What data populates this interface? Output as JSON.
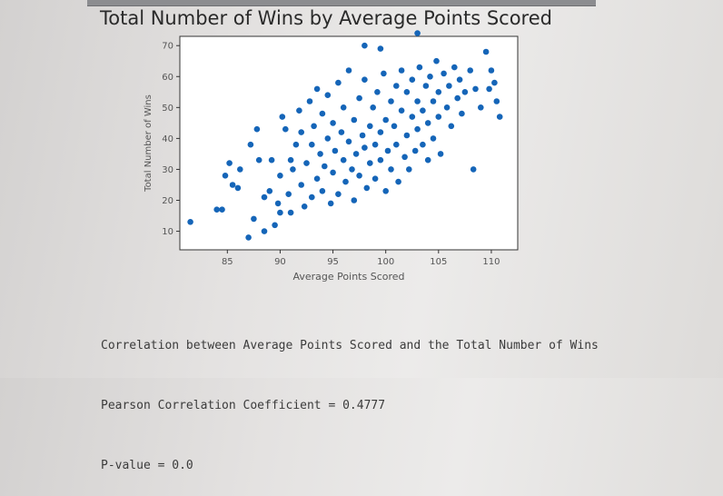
{
  "output_lines": [
    "Correlation between Average Points Scored and the Total Number of Wins",
    "Pearson Correlation Coefficient = 0.4777",
    "P-value = 0.0"
  ],
  "colors": {
    "point": "#1565b8",
    "axis": "#333333",
    "tick_text": "#555555",
    "background": "#ffffff"
  },
  "chart_data": {
    "type": "scatter",
    "title": "Total Number of Wins by Average Points Scored",
    "xlabel": "Average Points Scored",
    "ylabel": "Total Number of Wins",
    "xlim": [
      80.5,
      112.5
    ],
    "ylim": [
      4,
      73
    ],
    "xticks": [
      85,
      90,
      95,
      100,
      105,
      110
    ],
    "yticks": [
      10,
      20,
      30,
      40,
      50,
      60,
      70
    ],
    "grid": false,
    "series": [
      {
        "points": [
          [
            81.5,
            13
          ],
          [
            84.0,
            17
          ],
          [
            84.5,
            17
          ],
          [
            84.8,
            28
          ],
          [
            85.2,
            32
          ],
          [
            85.5,
            25
          ],
          [
            86.0,
            24
          ],
          [
            86.2,
            30
          ],
          [
            87.0,
            8
          ],
          [
            87.2,
            38
          ],
          [
            87.5,
            14
          ],
          [
            87.8,
            43
          ],
          [
            88.0,
            33
          ],
          [
            88.5,
            10
          ],
          [
            88.5,
            21
          ],
          [
            89.0,
            23
          ],
          [
            89.2,
            33
          ],
          [
            89.5,
            12
          ],
          [
            89.8,
            19
          ],
          [
            90.0,
            16
          ],
          [
            90.0,
            28
          ],
          [
            90.2,
            47
          ],
          [
            90.5,
            43
          ],
          [
            90.8,
            22
          ],
          [
            91.0,
            16
          ],
          [
            91.0,
            33
          ],
          [
            91.2,
            30
          ],
          [
            91.5,
            38
          ],
          [
            91.8,
            49
          ],
          [
            92.0,
            25
          ],
          [
            92.0,
            42
          ],
          [
            92.3,
            18
          ],
          [
            92.5,
            32
          ],
          [
            92.8,
            52
          ],
          [
            93.0,
            21
          ],
          [
            93.0,
            38
          ],
          [
            93.2,
            44
          ],
          [
            93.5,
            27
          ],
          [
            93.5,
            56
          ],
          [
            93.8,
            35
          ],
          [
            94.0,
            23
          ],
          [
            94.0,
            48
          ],
          [
            94.2,
            31
          ],
          [
            94.5,
            40
          ],
          [
            94.5,
            54
          ],
          [
            94.8,
            19
          ],
          [
            95.0,
            29
          ],
          [
            95.0,
            45
          ],
          [
            95.2,
            36
          ],
          [
            95.5,
            58
          ],
          [
            95.5,
            22
          ],
          [
            95.8,
            42
          ],
          [
            96.0,
            33
          ],
          [
            96.0,
            50
          ],
          [
            96.2,
            26
          ],
          [
            96.5,
            39
          ],
          [
            96.5,
            62
          ],
          [
            96.8,
            30
          ],
          [
            97.0,
            46
          ],
          [
            97.0,
            20
          ],
          [
            97.2,
            35
          ],
          [
            97.5,
            53
          ],
          [
            97.5,
            28
          ],
          [
            97.8,
            41
          ],
          [
            98.0,
            37
          ],
          [
            98.0,
            59
          ],
          [
            98.2,
            24
          ],
          [
            98.5,
            44
          ],
          [
            98.5,
            32
          ],
          [
            98.8,
            50
          ],
          [
            99.0,
            38
          ],
          [
            99.0,
            27
          ],
          [
            99.2,
            55
          ],
          [
            99.5,
            42
          ],
          [
            99.5,
            33
          ],
          [
            99.8,
            61
          ],
          [
            100.0,
            46
          ],
          [
            100.0,
            23
          ],
          [
            100.2,
            36
          ],
          [
            100.5,
            52
          ],
          [
            100.5,
            30
          ],
          [
            100.8,
            44
          ],
          [
            101.0,
            57
          ],
          [
            101.0,
            38
          ],
          [
            101.2,
            26
          ],
          [
            101.5,
            49
          ],
          [
            101.5,
            62
          ],
          [
            101.8,
            34
          ],
          [
            102.0,
            55
          ],
          [
            102.0,
            41
          ],
          [
            102.2,
            30
          ],
          [
            102.5,
            47
          ],
          [
            102.5,
            59
          ],
          [
            102.8,
            36
          ],
          [
            103.0,
            52
          ],
          [
            103.0,
            43
          ],
          [
            103.2,
            63
          ],
          [
            103.5,
            49
          ],
          [
            103.5,
            38
          ],
          [
            103.8,
            57
          ],
          [
            104.0,
            45
          ],
          [
            104.0,
            33
          ],
          [
            104.2,
            60
          ],
          [
            104.5,
            52
          ],
          [
            104.5,
            40
          ],
          [
            104.8,
            65
          ],
          [
            105.0,
            55
          ],
          [
            105.0,
            47
          ],
          [
            105.2,
            35
          ],
          [
            105.5,
            61
          ],
          [
            105.8,
            50
          ],
          [
            106.0,
            57
          ],
          [
            106.2,
            44
          ],
          [
            106.5,
            63
          ],
          [
            106.8,
            53
          ],
          [
            107.0,
            59
          ],
          [
            107.2,
            48
          ],
          [
            107.5,
            55
          ],
          [
            108.0,
            62
          ],
          [
            108.3,
            30
          ],
          [
            108.5,
            56
          ],
          [
            109.0,
            50
          ],
          [
            109.5,
            68
          ],
          [
            109.8,
            56
          ],
          [
            110.0,
            62
          ],
          [
            110.3,
            58
          ],
          [
            110.5,
            52
          ],
          [
            110.8,
            47
          ],
          [
            103.0,
            74
          ],
          [
            98.0,
            70
          ],
          [
            99.5,
            69
          ]
        ]
      }
    ]
  }
}
